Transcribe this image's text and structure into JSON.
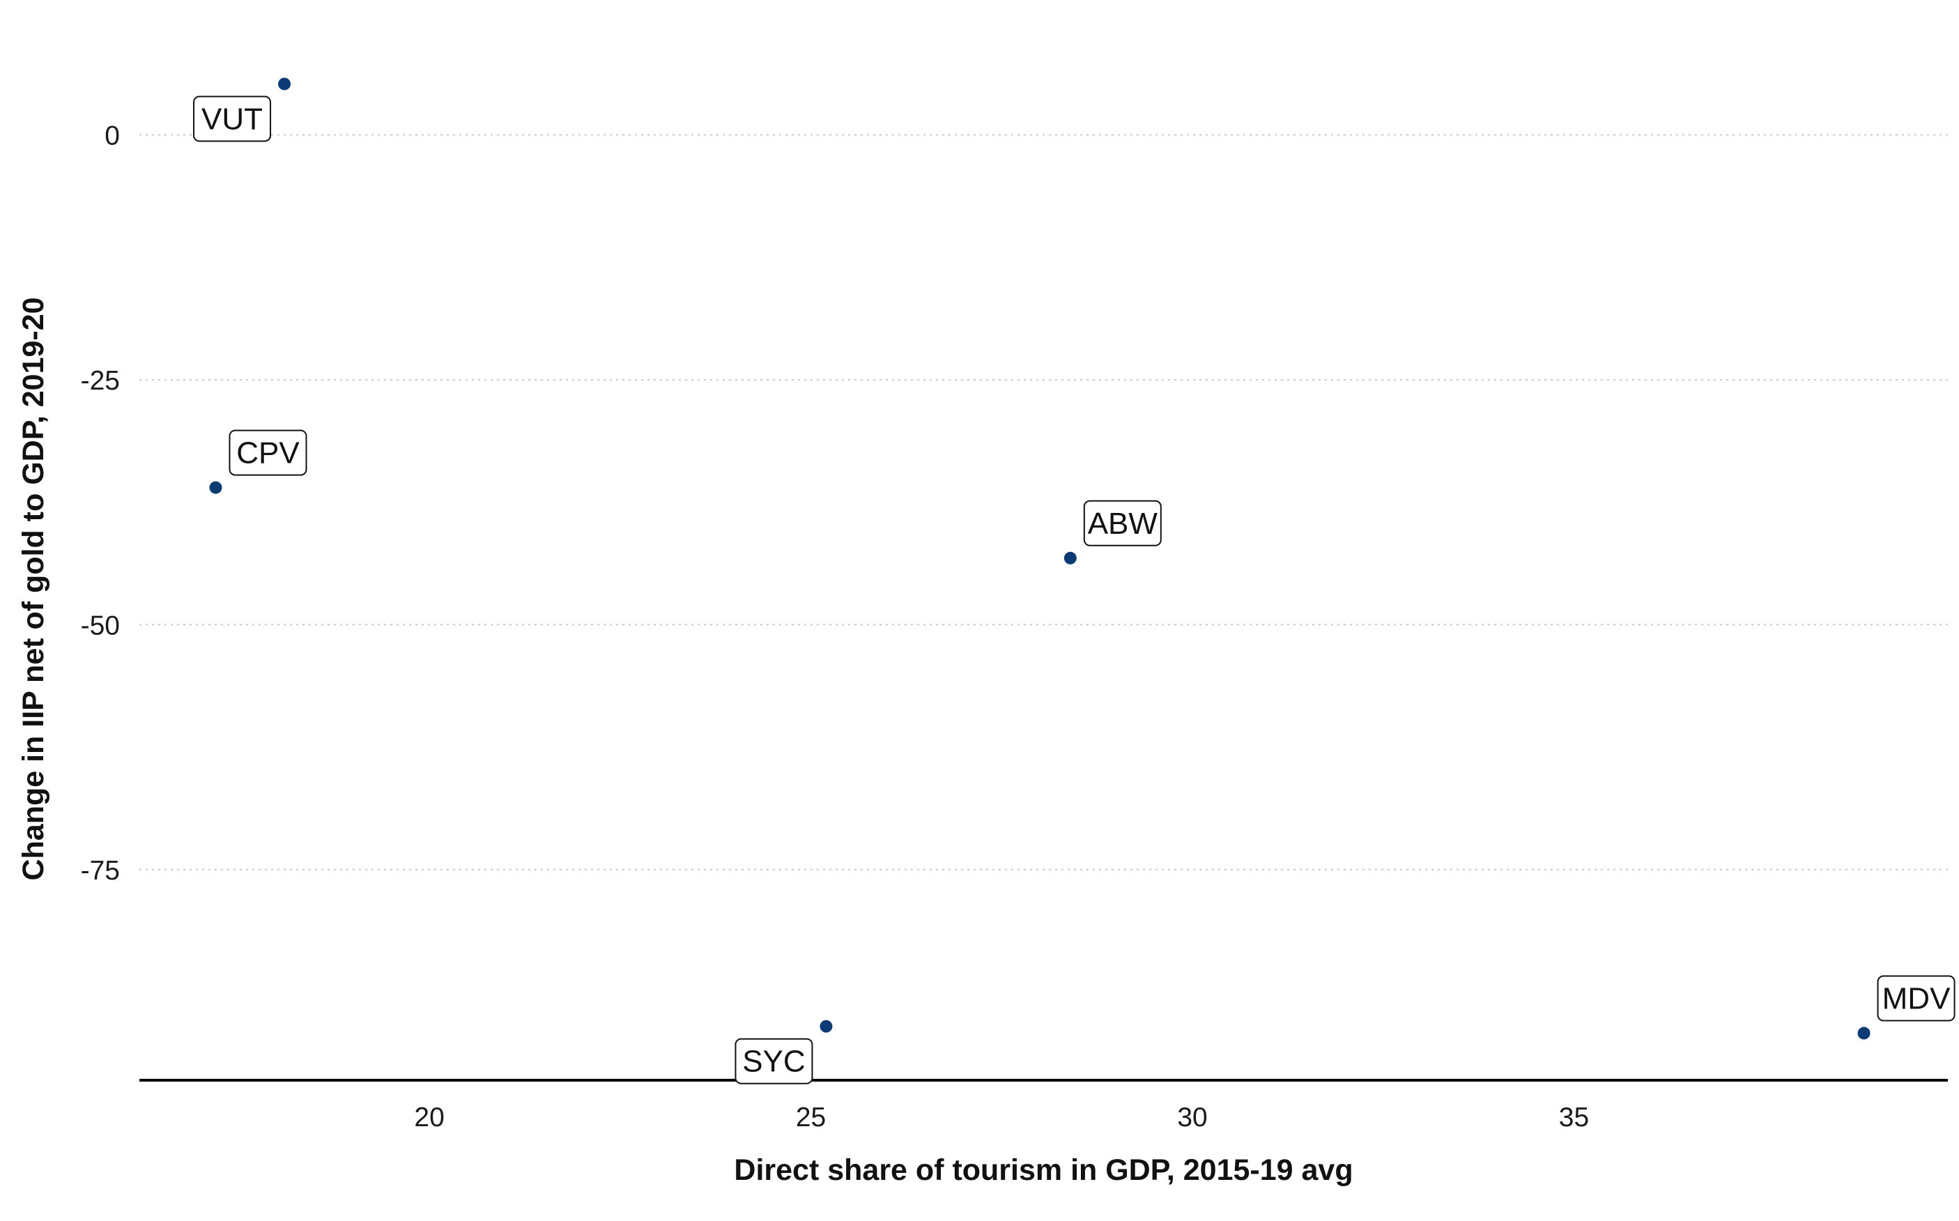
{
  "chart_data": {
    "type": "scatter",
    "title": "",
    "xlabel": "Direct share of tourism in GDP, 2015-19 avg",
    "ylabel": "Change in IIP net of gold to GDP, 2019-20",
    "xlim": [
      16.2,
      39.9
    ],
    "ylim": [
      -96.5,
      9.5
    ],
    "x_ticks": [
      20,
      25,
      30,
      35
    ],
    "y_ticks": [
      0,
      -25,
      -50,
      -75
    ],
    "grid": {
      "horizontal": true,
      "vertical": false,
      "style": "dotted"
    },
    "legend": "none",
    "point_color": "#0b3a75",
    "points": [
      {
        "label": "VUT",
        "x": 18.1,
        "y": 5.2,
        "label_position": "bottom-left"
      },
      {
        "label": "CPV",
        "x": 17.2,
        "y": -36.0,
        "label_position": "top-right"
      },
      {
        "label": "ABW",
        "x": 28.4,
        "y": -43.2,
        "label_position": "top-right"
      },
      {
        "label": "SYC",
        "x": 25.2,
        "y": -91.0,
        "label_position": "bottom-left"
      },
      {
        "label": "MDV",
        "x": 38.8,
        "y": -91.7,
        "label_position": "top-right"
      }
    ]
  }
}
